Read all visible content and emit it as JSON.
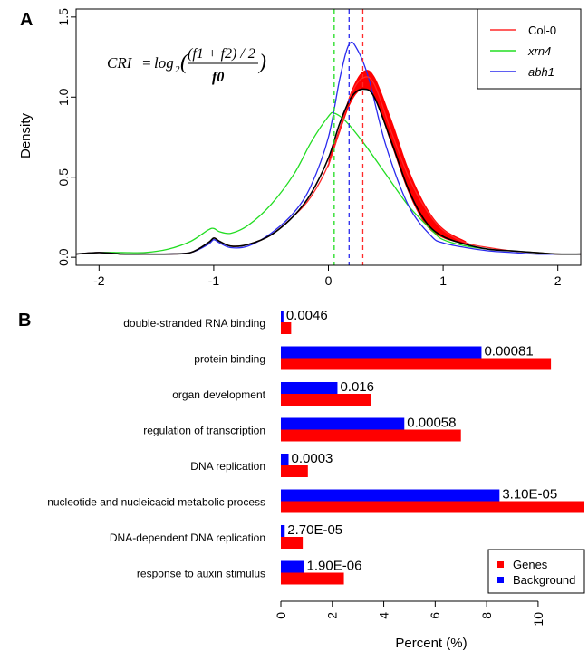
{
  "colors": {
    "col0": "#ff2a2a",
    "xrn4": "#22dd22",
    "abh1": "#2a2aee",
    "black": "#000000",
    "fill_red": "#ff0000",
    "genes": "#ff0000",
    "background": "#0000ff"
  },
  "chart_data": [
    {
      "panel": "A",
      "type": "line",
      "title": "",
      "xlabel": "",
      "ylabel": "Density",
      "xlim": [
        -2.2,
        2.2
      ],
      "ylim": [
        -0.05,
        1.55
      ],
      "xticks": [
        -2,
        -1,
        0,
        1,
        2
      ],
      "xtick_labels": [
        "-2",
        "-1",
        "0",
        "1",
        "2"
      ],
      "yticks": [
        0.0,
        0.5,
        1.0,
        1.5
      ],
      "ytick_labels": [
        "0.0",
        "0.5",
        "1.0",
        "1.5"
      ],
      "formula": {
        "lhs": "CRI",
        "log": "log",
        "base": "2",
        "numerator": "(f1 + f2) / 2",
        "denominator": "f0"
      },
      "legend": {
        "position": "top-right",
        "entries": [
          {
            "label": "Col-0",
            "color_key": "col0",
            "italic": false
          },
          {
            "label": "xrn4",
            "color_key": "xrn4",
            "italic": true
          },
          {
            "label": "abh1",
            "color_key": "abh1",
            "italic": true
          }
        ]
      },
      "vlines": [
        {
          "x": 0.05,
          "color_key": "xrn4"
        },
        {
          "x": 0.18,
          "color_key": "abh1"
        },
        {
          "x": 0.3,
          "color_key": "col0"
        }
      ],
      "series": [
        {
          "color_key": "xrn4",
          "x": [
            -2.2,
            -2.0,
            -1.8,
            -1.6,
            -1.4,
            -1.2,
            -1.05,
            -1.0,
            -0.95,
            -0.85,
            -0.7,
            -0.5,
            -0.3,
            -0.15,
            0.0,
            0.05,
            0.15,
            0.3,
            0.5,
            0.7,
            0.9,
            1.0,
            1.2,
            1.4,
            1.6,
            1.8,
            2.0,
            2.2
          ],
          "y": [
            0.02,
            0.03,
            0.03,
            0.03,
            0.05,
            0.1,
            0.17,
            0.18,
            0.16,
            0.15,
            0.2,
            0.33,
            0.52,
            0.72,
            0.88,
            0.9,
            0.85,
            0.72,
            0.52,
            0.32,
            0.17,
            0.11,
            0.07,
            0.05,
            0.04,
            0.03,
            0.02,
            0.02
          ]
        },
        {
          "color_key": "abh1",
          "x": [
            -2.2,
            -2.0,
            -1.8,
            -1.6,
            -1.4,
            -1.2,
            -1.05,
            -1.0,
            -0.95,
            -0.85,
            -0.7,
            -0.5,
            -0.3,
            -0.15,
            0.0,
            0.1,
            0.18,
            0.25,
            0.35,
            0.5,
            0.7,
            0.9,
            1.0,
            1.2,
            1.4,
            1.6,
            1.8,
            2.0,
            2.2
          ],
          "y": [
            0.02,
            0.03,
            0.02,
            0.02,
            0.02,
            0.03,
            0.08,
            0.11,
            0.09,
            0.06,
            0.07,
            0.15,
            0.28,
            0.45,
            0.75,
            1.12,
            1.33,
            1.3,
            1.12,
            0.7,
            0.32,
            0.13,
            0.09,
            0.06,
            0.04,
            0.03,
            0.02,
            0.02,
            0.02
          ]
        },
        {
          "color_key": "col0",
          "x": [
            -2.2,
            -2.0,
            -1.8,
            -1.6,
            -1.4,
            -1.2,
            -1.05,
            -1.0,
            -0.95,
            -0.85,
            -0.7,
            -0.5,
            -0.3,
            -0.15,
            0.0,
            0.1,
            0.2,
            0.3,
            0.4,
            0.55,
            0.7,
            0.85,
            1.0,
            1.2,
            1.4,
            1.6,
            1.8,
            2.0,
            2.2
          ],
          "y": [
            0.02,
            0.03,
            0.02,
            0.02,
            0.02,
            0.03,
            0.09,
            0.12,
            0.1,
            0.07,
            0.08,
            0.14,
            0.26,
            0.38,
            0.58,
            0.8,
            1.02,
            1.12,
            1.08,
            0.78,
            0.5,
            0.3,
            0.17,
            0.09,
            0.06,
            0.04,
            0.03,
            0.02,
            0.02
          ]
        },
        {
          "color_key": "black",
          "x": [
            -2.2,
            -2.0,
            -1.8,
            -1.6,
            -1.4,
            -1.2,
            -1.05,
            -1.0,
            -0.95,
            -0.85,
            -0.7,
            -0.5,
            -0.3,
            -0.15,
            0.0,
            0.1,
            0.2,
            0.3,
            0.4,
            0.55,
            0.7,
            0.85,
            1.0,
            1.2,
            1.4,
            1.6,
            1.8,
            2.0,
            2.2
          ],
          "y": [
            0.02,
            0.03,
            0.02,
            0.02,
            0.02,
            0.03,
            0.09,
            0.12,
            0.1,
            0.07,
            0.08,
            0.14,
            0.26,
            0.4,
            0.62,
            0.84,
            1.0,
            1.05,
            1.0,
            0.72,
            0.42,
            0.22,
            0.13,
            0.08,
            0.05,
            0.04,
            0.03,
            0.02,
            0.02
          ]
        }
      ],
      "band": {
        "color_key": "fill_red",
        "x": [
          0.0,
          0.1,
          0.2,
          0.3,
          0.4,
          0.55,
          0.7,
          0.85,
          1.0,
          1.2
        ],
        "upper": [
          0.6,
          0.82,
          1.04,
          1.16,
          1.13,
          0.86,
          0.55,
          0.32,
          0.18,
          0.1
        ],
        "lower": [
          0.56,
          0.78,
          0.97,
          1.05,
          1.0,
          0.7,
          0.4,
          0.2,
          0.12,
          0.08
        ]
      }
    },
    {
      "panel": "B",
      "type": "bar",
      "orientation": "horizontal",
      "xlabel": "Percent (%)",
      "ylabel": "",
      "xlim": [
        0,
        11.8
      ],
      "xticks": [
        0,
        2,
        4,
        6,
        8,
        10
      ],
      "xtick_labels": [
        "0",
        "2",
        "4",
        "6",
        "8",
        "10"
      ],
      "categories": [
        "double-stranded RNA binding",
        "protein binding",
        "organ development",
        "regulation of transcription",
        "DNA replication",
        "nucleotide and nucleicacid metabolic process",
        "DNA-dependent DNA replication",
        "response to auxin stimulus"
      ],
      "pvalues": [
        "0.0046",
        "0.00081",
        "0.016",
        "0.00058",
        "0.0003",
        "3.10E-05",
        "2.70E-05",
        "1.90E-06"
      ],
      "series": [
        {
          "name": "Background",
          "color_key": "background",
          "values": [
            0.1,
            7.8,
            2.2,
            4.8,
            0.3,
            8.5,
            0.15,
            0.9
          ]
        },
        {
          "name": "Genes",
          "color_key": "genes",
          "values": [
            0.4,
            10.5,
            3.5,
            7.0,
            1.05,
            11.8,
            0.85,
            2.45
          ]
        }
      ],
      "legend": {
        "position": "bottom-right",
        "entries": [
          {
            "label": "Genes",
            "color_key": "genes"
          },
          {
            "label": "Background",
            "color_key": "background"
          }
        ]
      }
    }
  ]
}
